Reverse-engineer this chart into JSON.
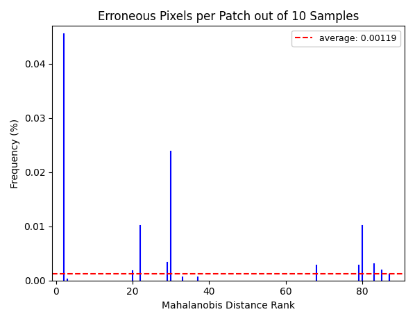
{
  "title": "Erroneous Pixels per Patch out of 10 Samples",
  "xlabel": "Mahalanobis Distance Rank",
  "ylabel": "Frequency (%)",
  "bar_x": [
    2,
    3,
    20,
    22,
    29,
    30,
    33,
    37,
    65,
    68,
    79,
    80,
    83,
    85,
    87
  ],
  "bar_y": [
    0.0455,
    0.0002,
    0.00175,
    0.0101,
    0.00325,
    0.0238,
    0.00055,
    0.00065,
    0.0,
    0.00285,
    0.00285,
    0.01005,
    0.00305,
    0.00195,
    0.00115
  ],
  "bar_color": "#0000ff",
  "avg_value": 0.00119,
  "avg_color": "#ff0000",
  "avg_label": "average: 0.00119",
  "xlim": [
    -1,
    91
  ],
  "ylim": [
    0,
    0.047
  ],
  "yticks": [
    0.0,
    0.01,
    0.02,
    0.03,
    0.04
  ],
  "xticks": [
    0,
    20,
    40,
    60,
    80
  ],
  "figsize": [
    5.98,
    4.62
  ],
  "dpi": 100
}
